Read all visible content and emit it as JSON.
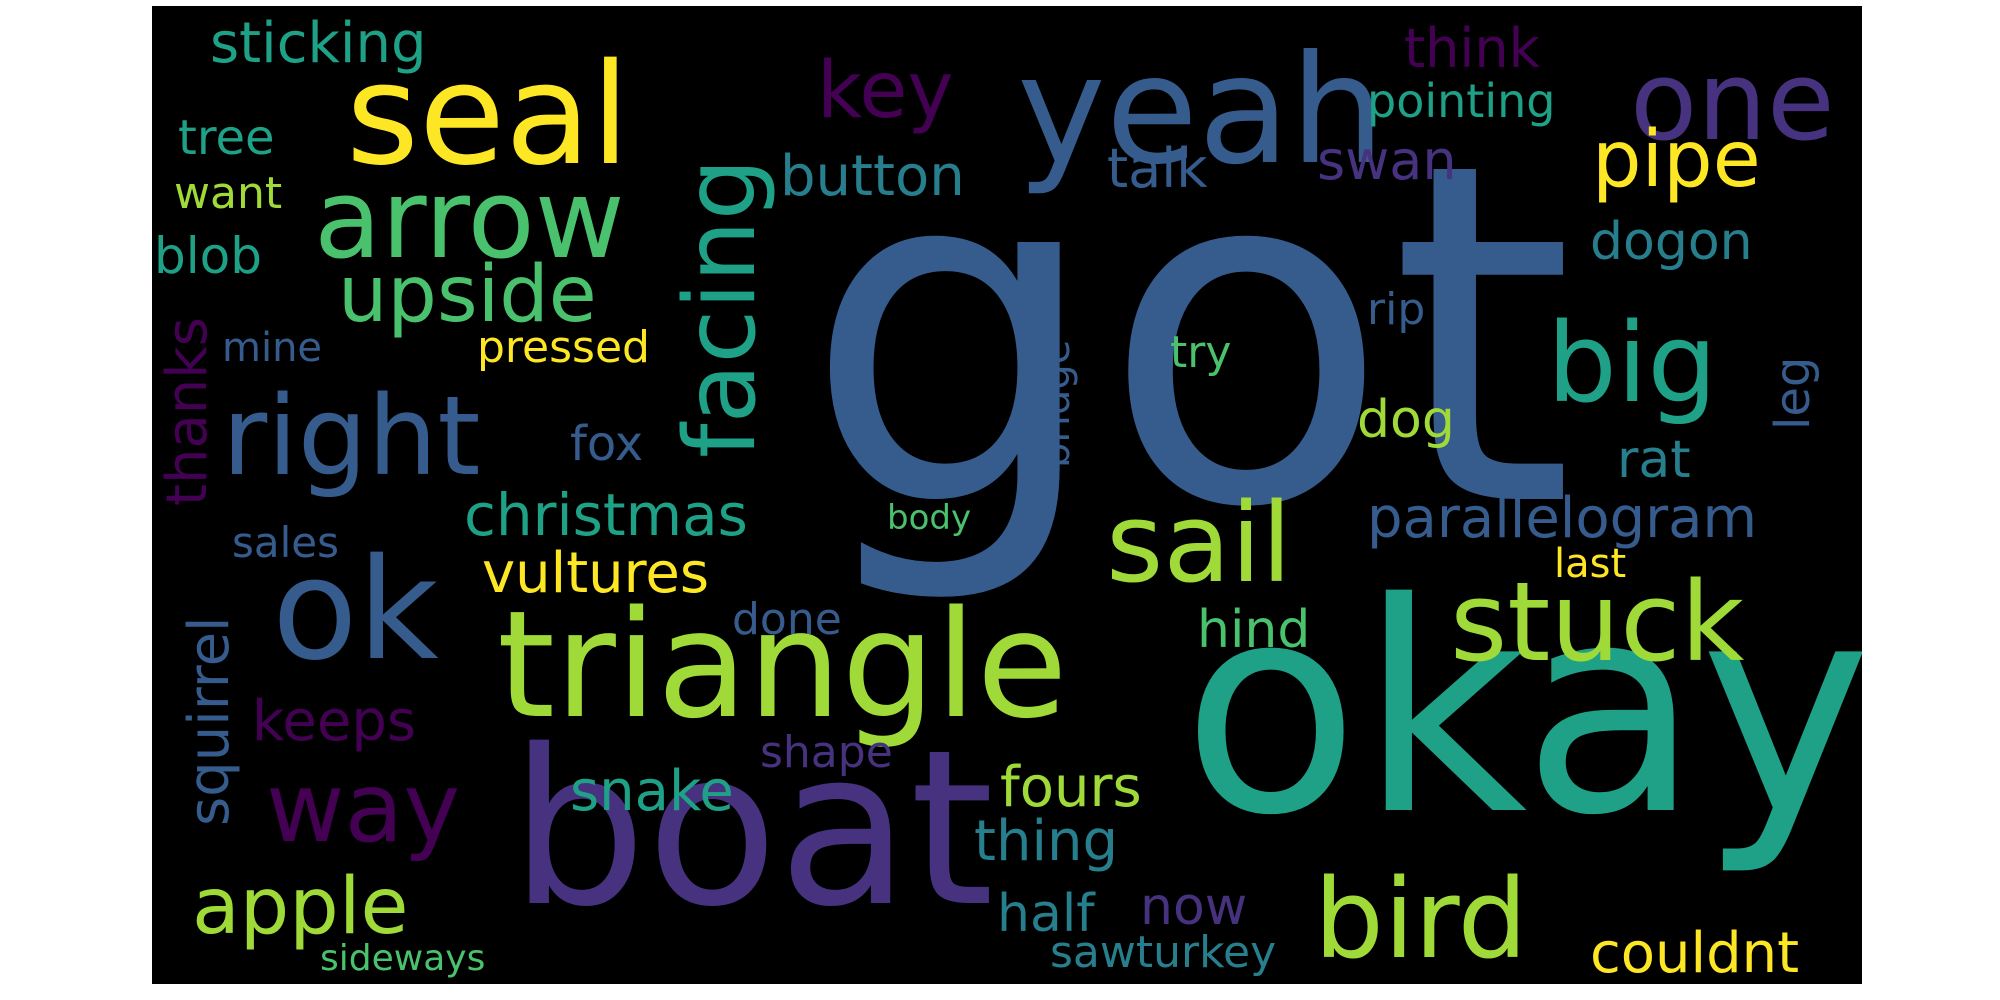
{
  "palette": {
    "background": "#000000",
    "yellow": "#fde725",
    "lightgreen": "#a0da39",
    "green": "#4ac16d",
    "teal": "#1fa187",
    "darkteal": "#277f8e",
    "blue": "#365c8d",
    "indigo": "#46327e",
    "purple": "#440154"
  },
  "words": [
    {
      "id": "got",
      "text": "got",
      "color": "blue"
    },
    {
      "id": "okay",
      "text": "okay",
      "color": "teal"
    },
    {
      "id": "boat",
      "text": "boat",
      "color": "indigo"
    },
    {
      "id": "triangle",
      "text": "triangle",
      "color": "lightgreen"
    },
    {
      "id": "yeah",
      "text": "yeah",
      "color": "blue"
    },
    {
      "id": "seal",
      "text": "seal",
      "color": "yellow"
    },
    {
      "id": "arrow",
      "text": "arrow",
      "color": "green"
    },
    {
      "id": "right",
      "text": "right",
      "color": "blue"
    },
    {
      "id": "ok",
      "text": "ok",
      "color": "blue"
    },
    {
      "id": "facing",
      "text": "facing",
      "color": "teal"
    },
    {
      "id": "one",
      "text": "one",
      "color": "indigo"
    },
    {
      "id": "big",
      "text": "big",
      "color": "teal"
    },
    {
      "id": "sail",
      "text": "sail",
      "color": "lightgreen"
    },
    {
      "id": "stuck",
      "text": "stuck",
      "color": "lightgreen"
    },
    {
      "id": "bird",
      "text": "bird",
      "color": "lightgreen"
    },
    {
      "id": "way",
      "text": "way",
      "color": "purple"
    },
    {
      "id": "upside",
      "text": "upside",
      "color": "green"
    },
    {
      "id": "apple",
      "text": "apple",
      "color": "lightgreen"
    },
    {
      "id": "pipe",
      "text": "pipe",
      "color": "yellow"
    },
    {
      "id": "key",
      "text": "key",
      "color": "purple"
    },
    {
      "id": "parallelogram",
      "text": "parallelogram",
      "color": "blue"
    },
    {
      "id": "christmas",
      "text": "christmas",
      "color": "teal"
    },
    {
      "id": "button",
      "text": "button",
      "color": "darkteal"
    },
    {
      "id": "sticking",
      "text": "sticking",
      "color": "teal"
    },
    {
      "id": "vultures",
      "text": "vultures",
      "color": "yellow"
    },
    {
      "id": "snake",
      "text": "snake",
      "color": "teal"
    },
    {
      "id": "fours",
      "text": "fours",
      "color": "lightgreen"
    },
    {
      "id": "thing",
      "text": "thing",
      "color": "darkteal"
    },
    {
      "id": "keeps",
      "text": "keeps",
      "color": "purple"
    },
    {
      "id": "couldnt",
      "text": "couldnt",
      "color": "yellow"
    },
    {
      "id": "squirrel",
      "text": "squirrel",
      "color": "blue"
    },
    {
      "id": "thanks",
      "text": "thanks",
      "color": "purple"
    },
    {
      "id": "talk",
      "text": "talk",
      "color": "blue"
    },
    {
      "id": "swan",
      "text": "swan",
      "color": "indigo"
    },
    {
      "id": "think",
      "text": "think",
      "color": "purple"
    },
    {
      "id": "pointing",
      "text": "pointing",
      "color": "teal"
    },
    {
      "id": "dogon",
      "text": "dogon",
      "color": "darkteal"
    },
    {
      "id": "rat",
      "text": "rat",
      "color": "darkteal"
    },
    {
      "id": "leg",
      "text": "leg",
      "color": "blue"
    },
    {
      "id": "hind",
      "text": "hind",
      "color": "green"
    },
    {
      "id": "dog",
      "text": "dog",
      "color": "lightgreen"
    },
    {
      "id": "blob",
      "text": "blob",
      "color": "teal"
    },
    {
      "id": "tree",
      "text": "tree",
      "color": "teal"
    },
    {
      "id": "want",
      "text": "want",
      "color": "lightgreen"
    },
    {
      "id": "pressed",
      "text": "pressed",
      "color": "yellow"
    },
    {
      "id": "fox",
      "text": "fox",
      "color": "blue"
    },
    {
      "id": "mine",
      "text": "mine",
      "color": "blue"
    },
    {
      "id": "sales",
      "text": "sales",
      "color": "blue"
    },
    {
      "id": "done",
      "text": "done",
      "color": "blue"
    },
    {
      "id": "shape",
      "text": "shape",
      "color": "indigo"
    },
    {
      "id": "half",
      "text": "half",
      "color": "darkteal"
    },
    {
      "id": "now",
      "text": "now",
      "color": "indigo"
    },
    {
      "id": "sawturkey",
      "text": "sawturkey",
      "color": "darkteal"
    },
    {
      "id": "sideways",
      "text": "sideways",
      "color": "green"
    },
    {
      "id": "bridge",
      "text": "bridge",
      "color": "blue"
    },
    {
      "id": "try",
      "text": "try",
      "color": "green"
    },
    {
      "id": "rip",
      "text": "rip",
      "color": "blue"
    },
    {
      "id": "last",
      "text": "last",
      "color": "yellow"
    },
    {
      "id": "body",
      "text": "body",
      "color": "green"
    }
  ]
}
